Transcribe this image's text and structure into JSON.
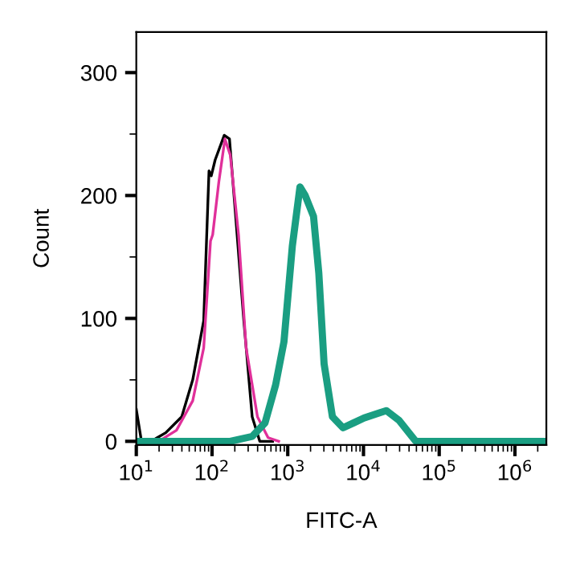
{
  "chart_data": {
    "type": "line",
    "xlabel": "FITC-A",
    "ylabel": "Count",
    "log": "x",
    "grid": false,
    "legend": false,
    "xlim": [
      10,
      2600000
    ],
    "ylim": [
      -3,
      333
    ],
    "xticks": [
      {
        "value": 10,
        "label": "10$^{1}$"
      },
      {
        "value": 100,
        "label": "10$^{2}$"
      },
      {
        "value": 1000,
        "label": "10$^{3}$"
      },
      {
        "value": 10000,
        "label": "10$^{4}$"
      },
      {
        "value": 100000,
        "label": "10$^{5}$"
      },
      {
        "value": 1000000,
        "label": "10$^{6}$"
      }
    ],
    "yticks": [
      0,
      100,
      200,
      300
    ],
    "series": [
      {
        "color": "#000000",
        "x": [
          10,
          11.7,
          17.8,
          24.5,
          39.8,
          55.6,
          77.6,
          91.2,
          97.7,
          110,
          145,
          170,
          204,
          263,
          339,
          427,
          630
        ],
        "values": [
          26,
          0,
          2,
          7,
          20,
          50,
          98,
          220,
          216,
          229,
          249,
          246,
          185,
          98,
          20,
          0,
          0
        ]
      },
      {
        "color": "#e0309a",
        "x": [
          11.7,
          20.9,
          33.9,
          55.6,
          77.6,
          95.5,
          102,
          123,
          148,
          174,
          224,
          282,
          398,
          550,
          759
        ],
        "values": [
          0,
          1,
          9,
          33,
          76,
          163,
          168,
          211,
          246,
          233,
          168,
          76,
          20,
          3,
          0
        ]
      },
      {
        "color": "#1a9e82",
        "x": [
          10,
          174,
          339,
          501,
          692,
          891,
          1150,
          1450,
          1700,
          2190,
          2570,
          3020,
          3890,
          5370,
          7410,
          10200,
          20000,
          29500,
          49000,
          2600000
        ],
        "values": [
          0,
          0,
          4,
          15,
          46,
          81,
          159,
          207,
          200,
          183,
          137,
          63,
          20,
          11,
          15,
          19,
          25,
          17,
          0,
          0
        ]
      }
    ]
  }
}
